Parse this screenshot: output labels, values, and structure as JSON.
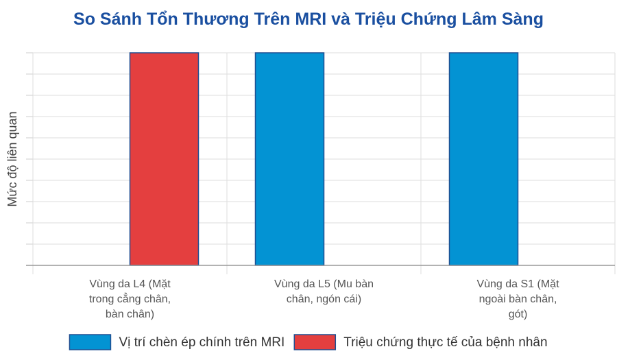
{
  "chart_data": {
    "type": "bar",
    "title": "So Sánh Tổn Thương Trên MRI và Triệu Chứng Lâm Sàng",
    "xlabel": "",
    "ylabel": "Mức độ liên quan",
    "categories": [
      [
        "Vùng da L4 (Mặt",
        "trong cẳng chân,",
        "bàn chân)"
      ],
      [
        "Vùng da L5 (Mu bàn",
        "chân, ngón cái)"
      ],
      [
        "Vùng da S1 (Mặt",
        "ngoài bàn chân,",
        "gót)"
      ]
    ],
    "ylim": [
      0,
      1
    ],
    "grid": true,
    "legend_position": "bottom",
    "series": [
      {
        "name": "Vị trí chèn ép chính trên MRI",
        "color": "#0393d3",
        "values": [
          0,
          1,
          1
        ]
      },
      {
        "name": "Triệu chứng thực tế của bệnh nhân",
        "color": "#e43f3f",
        "values": [
          1,
          0,
          0
        ]
      }
    ]
  }
}
